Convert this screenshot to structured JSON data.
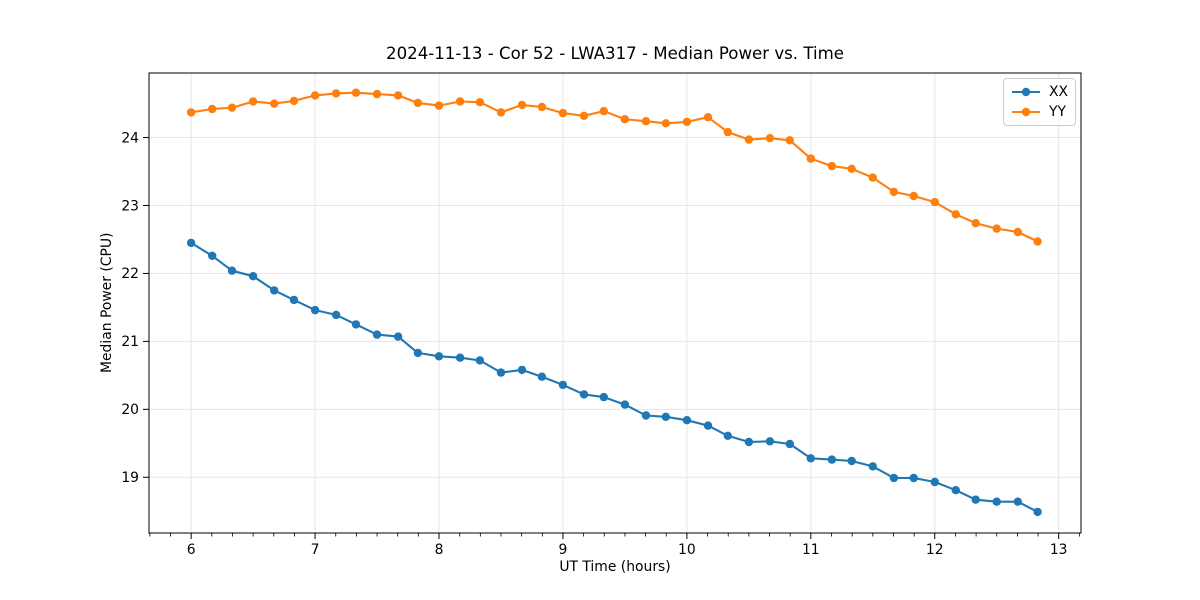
{
  "chart_data": {
    "type": "line",
    "title": "2024-11-13 - Cor 52 - LWA317 - Median Power vs. Time",
    "xlabel": "UT Time (hours)",
    "ylabel": "Median Power (CPU)",
    "x": [
      6.0,
      6.17,
      6.33,
      6.5,
      6.67,
      6.83,
      7.0,
      7.17,
      7.33,
      7.5,
      7.67,
      7.83,
      8.0,
      8.17,
      8.33,
      8.5,
      8.67,
      8.83,
      9.0,
      9.17,
      9.33,
      9.5,
      9.67,
      9.83,
      10.0,
      10.17,
      10.33,
      10.5,
      10.67,
      10.83,
      11.0,
      11.17,
      11.33,
      11.5,
      11.67,
      11.83,
      12.0,
      12.17,
      12.33,
      12.5,
      12.67,
      12.83
    ],
    "series": [
      {
        "name": "XX",
        "color": "#1f77b4",
        "marker": "circle",
        "values": [
          22.45,
          22.26,
          22.04,
          21.96,
          21.75,
          21.61,
          21.46,
          21.39,
          21.25,
          21.1,
          21.07,
          20.83,
          20.78,
          20.76,
          20.72,
          20.54,
          20.58,
          20.48,
          20.36,
          20.22,
          20.18,
          20.07,
          19.91,
          19.89,
          19.84,
          19.76,
          19.61,
          19.52,
          19.53,
          19.49,
          19.28,
          19.26,
          19.24,
          19.16,
          18.99,
          18.99,
          18.93,
          18.81,
          18.67,
          18.64,
          18.64,
          18.49
        ]
      },
      {
        "name": "YY",
        "color": "#ff7f0e",
        "marker": "circle",
        "values": [
          24.37,
          24.42,
          24.44,
          24.53,
          24.5,
          24.54,
          24.62,
          24.65,
          24.66,
          24.64,
          24.62,
          24.51,
          24.47,
          24.53,
          24.52,
          24.37,
          24.48,
          24.45,
          24.36,
          24.32,
          24.39,
          24.27,
          24.24,
          24.21,
          24.23,
          24.3,
          24.08,
          23.97,
          23.99,
          23.96,
          23.69,
          23.58,
          23.54,
          23.41,
          23.2,
          23.14,
          23.05,
          22.87,
          22.74,
          22.66,
          22.61,
          22.47
        ]
      }
    ],
    "xlim": [
      5.66,
      13.18
    ],
    "ylim": [
      18.18,
      24.95
    ],
    "xticks": [
      6,
      7,
      8,
      9,
      10,
      11,
      12,
      13
    ],
    "yticks": [
      19,
      20,
      21,
      22,
      23,
      24
    ],
    "x_minor_tick_step": 0.16667,
    "grid": true,
    "legend": {
      "position": "upper right",
      "entries": [
        "XX",
        "YY"
      ]
    }
  },
  "style": {
    "background": "#ffffff",
    "grid_color": "#e6e6e6",
    "spine_color": "#000000",
    "tick_color": "#000000",
    "text_color": "#000000",
    "legend_border_color": "#cccccc"
  }
}
